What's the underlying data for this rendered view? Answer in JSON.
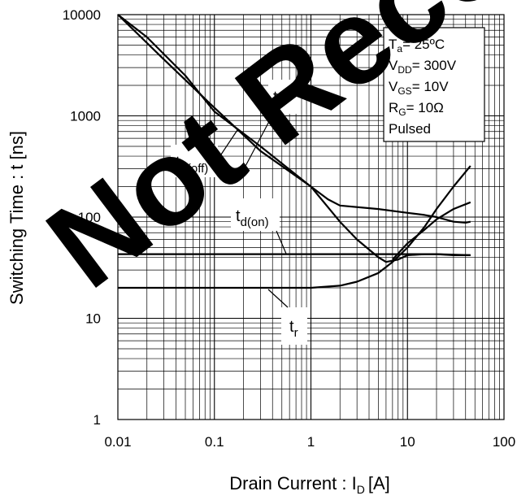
{
  "chart_data": {
    "type": "line",
    "title": "",
    "xlabel": "Drain Current : I",
    "xlabel_sub": "D",
    "xlabel_unit": "[A]",
    "ylabel": "Switching Time : t [ns]",
    "xscale": "log",
    "yscale": "log",
    "xlim": [
      0.01,
      100
    ],
    "ylim": [
      1,
      10000
    ],
    "grid": true,
    "x_ticks": [
      "0.01",
      "0.1",
      "1",
      "10",
      "100"
    ],
    "y_ticks": [
      "1",
      "10",
      "100",
      "1000",
      "10000"
    ],
    "series": [
      {
        "name": "t",
        "sub": "f",
        "label_text": "t",
        "x": [
          0.01,
          0.03,
          0.1,
          0.3,
          1,
          2,
          3,
          5,
          6,
          8,
          10,
          15,
          20,
          30,
          45
        ],
        "y": [
          10000,
          3600,
          1200,
          450,
          200,
          90,
          60,
          40,
          36,
          38,
          42,
          43,
          43,
          42,
          42
        ]
      },
      {
        "name": "t",
        "sub": "d(off)",
        "label_text": "t",
        "x": [
          0.01,
          0.02,
          0.05,
          0.1,
          0.3,
          1,
          1.5,
          2,
          5,
          10,
          15,
          20,
          30,
          40,
          45
        ],
        "y": [
          10000,
          6000,
          2500,
          1100,
          500,
          200,
          150,
          130,
          120,
          110,
          105,
          100,
          90,
          88,
          90
        ]
      },
      {
        "name": "t",
        "sub": "d(on)",
        "label_text": "t",
        "x": [
          0.01,
          0.1,
          1,
          5,
          10,
          20,
          45
        ],
        "y": [
          43,
          43,
          43,
          43,
          43,
          43,
          42
        ]
      },
      {
        "name": "t",
        "sub": "r",
        "label_text": "t",
        "x": [
          0.01,
          0.1,
          0.5,
          1,
          2,
          3,
          5,
          7,
          10,
          15,
          20,
          30,
          45
        ],
        "y": [
          20,
          20,
          20,
          20,
          21,
          23,
          28,
          36,
          50,
          80,
          120,
          200,
          320
        ]
      },
      {
        "name": "",
        "sub": "",
        "x": [
          7,
          10,
          15,
          20,
          30,
          45
        ],
        "y": [
          38,
          55,
          75,
          95,
          120,
          140
        ]
      }
    ],
    "conditions": [
      {
        "main": "T",
        "sub": "a",
        "rest": "= 25ºC"
      },
      {
        "main": "V",
        "sub": "DD",
        "rest": "= 300V"
      },
      {
        "main": "V",
        "sub": "GS",
        "rest": "= 10V"
      },
      {
        "main": "R",
        "sub": "G",
        "rest": "= 10Ω"
      },
      {
        "main": "Pulsed",
        "sub": "",
        "rest": ""
      }
    ],
    "watermark": "Not Recommended",
    "watermark_color": "#000000"
  }
}
